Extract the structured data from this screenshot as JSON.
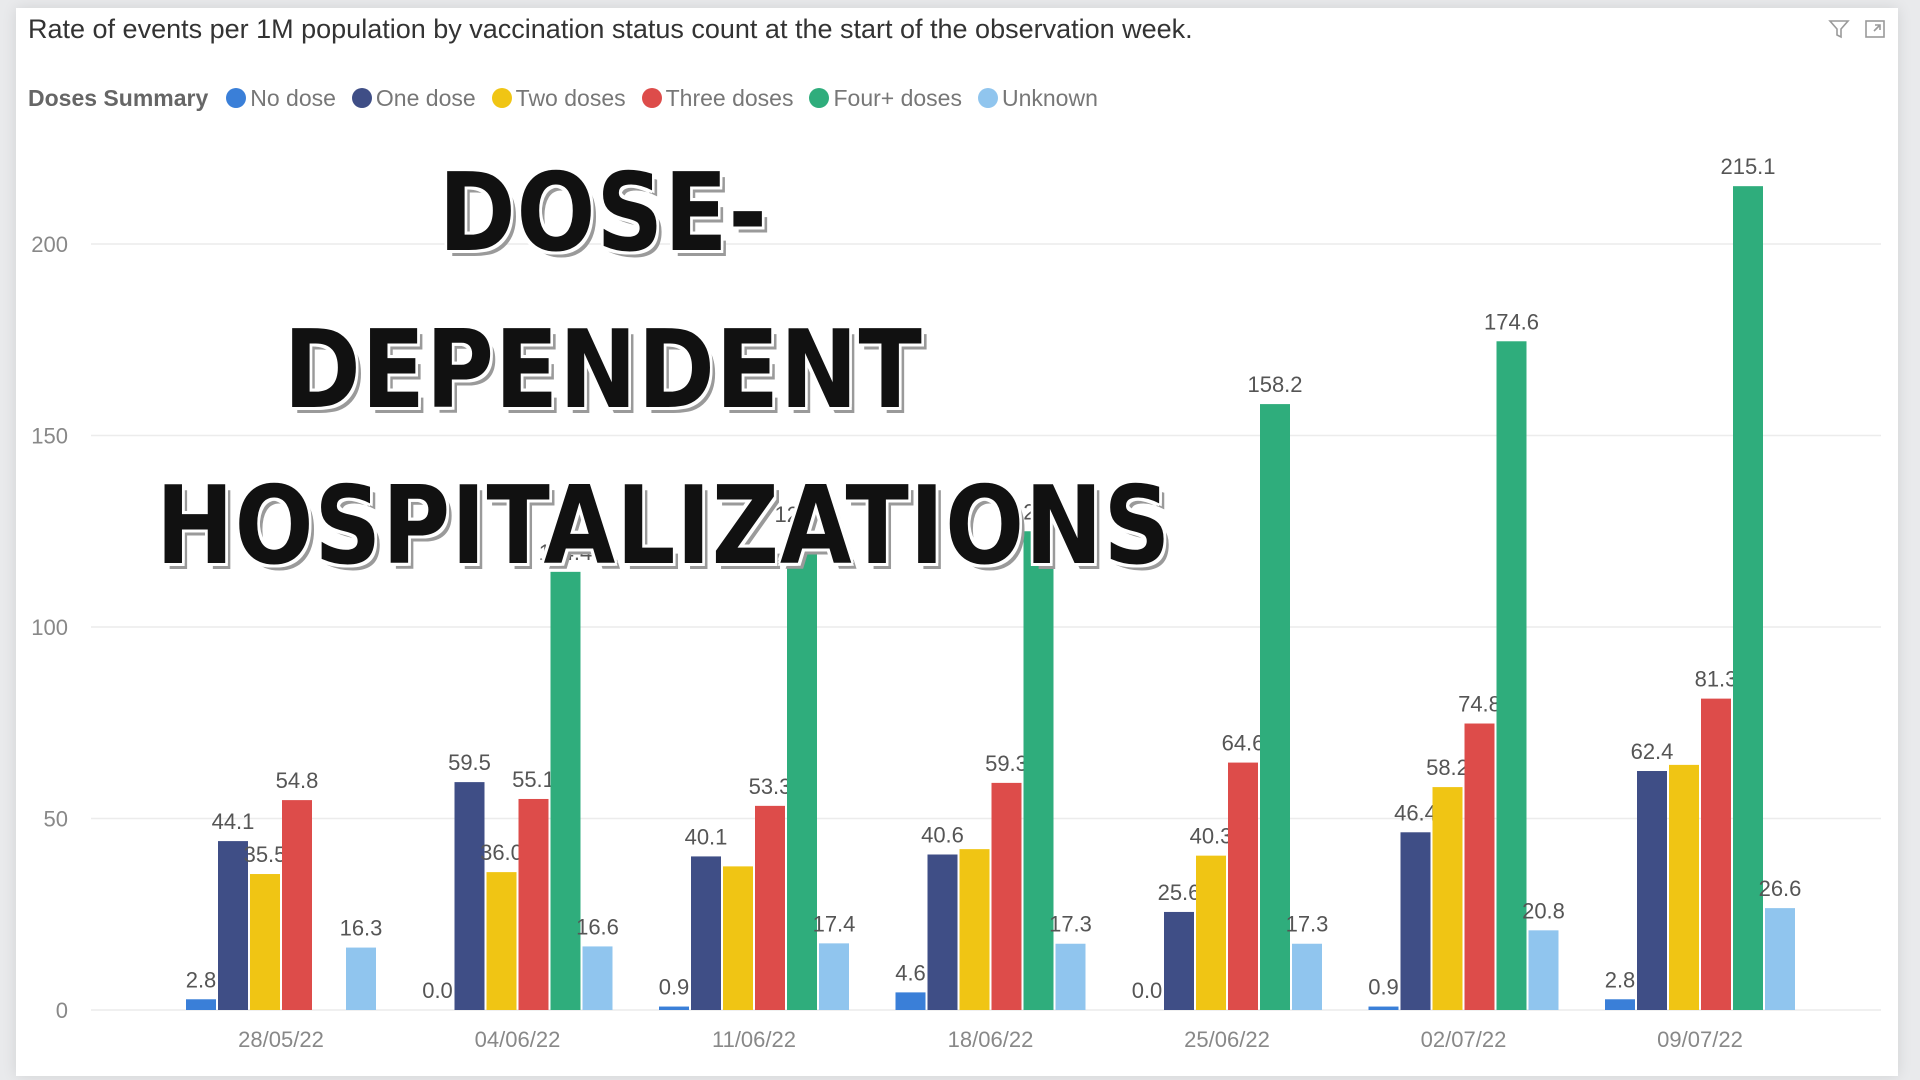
{
  "header": {
    "title": "Rate of events per 1M population by vaccination status count at the start of the observation week."
  },
  "legend": {
    "title": "Doses Summary",
    "items": [
      {
        "label": "No dose",
        "color": "#3a7fd8"
      },
      {
        "label": "One dose",
        "color": "#3f4e86"
      },
      {
        "label": "Two doses",
        "color": "#f0c514"
      },
      {
        "label": "Three doses",
        "color": "#dd4c4a"
      },
      {
        "label": "Four+ doses",
        "color": "#2fad7c"
      },
      {
        "label": "Unknown",
        "color": "#90c5ee"
      }
    ]
  },
  "overlay": {
    "line1": "DOSE-DEPENDENT",
    "line2": "HOSPITALIZATIONS"
  },
  "icons": [
    "filter-icon",
    "focus-mode-icon"
  ],
  "chart_data": {
    "type": "bar",
    "categories": [
      "28/05/22",
      "04/06/22",
      "11/06/22",
      "18/06/22",
      "25/06/22",
      "02/07/22",
      "09/07/22"
    ],
    "ylim": [
      0,
      230
    ],
    "yticks": [
      0,
      50,
      100,
      150,
      200
    ],
    "grid": true,
    "legend_position": "top-left",
    "series": [
      {
        "name": "No dose",
        "color": "#3a7fd8",
        "values": [
          2.8,
          0.0,
          0.9,
          4.6,
          0.0,
          0.9,
          2.8
        ],
        "labels": [
          "2.8",
          "0.0",
          "0.9",
          "4.6",
          "0.0",
          "0.9",
          "2.8"
        ]
      },
      {
        "name": "One dose",
        "color": "#3f4e86",
        "values": [
          44.1,
          59.5,
          40.1,
          40.6,
          25.6,
          46.4,
          62.4
        ],
        "labels": [
          "44.1",
          "59.5",
          "40.1",
          "40.6",
          "25.6",
          "46.4",
          "62.4"
        ]
      },
      {
        "name": "Two doses",
        "color": "#f0c514",
        "values": [
          35.5,
          36.0,
          37.5,
          42.0,
          40.3,
          58.2,
          64.0
        ],
        "labels": [
          "35.5",
          "36.0",
          "",
          "",
          "40.3",
          "58.2",
          ""
        ]
      },
      {
        "name": "Three doses",
        "color": "#dd4c4a",
        "values": [
          54.8,
          55.1,
          53.3,
          59.3,
          64.6,
          74.8,
          81.3
        ],
        "labels": [
          "54.8",
          "55.1",
          "53.3",
          "59.3",
          "64.6",
          "74.8",
          "81.3"
        ]
      },
      {
        "name": "Four+ doses",
        "color": "#2fad7c",
        "values": [
          null,
          114.4,
          124.3,
          125.0,
          158.2,
          174.6,
          215.1
        ],
        "labels": [
          "",
          "114.4",
          "124.3",
          "125.0",
          "158.2",
          "174.6",
          "215.1"
        ]
      },
      {
        "name": "Unknown",
        "color": "#90c5ee",
        "values": [
          16.3,
          16.6,
          17.4,
          17.3,
          17.3,
          20.8,
          26.6
        ],
        "labels": [
          "16.3",
          "16.6",
          "17.4",
          "17.3",
          "17.3",
          "20.8",
          "26.6"
        ]
      }
    ]
  }
}
